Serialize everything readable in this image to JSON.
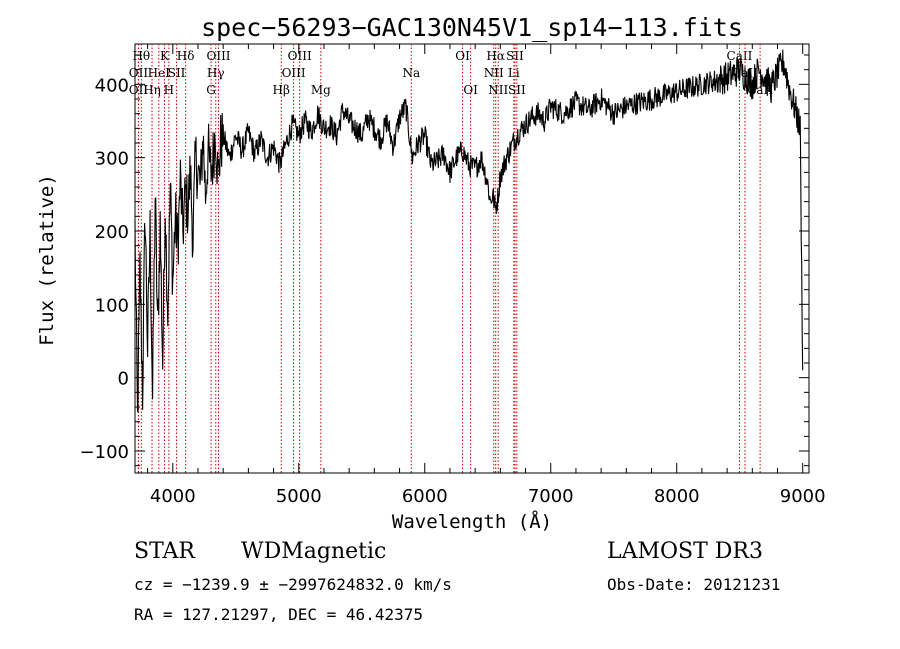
{
  "footer": {
    "objclass": "STAR",
    "subclass": "WDMagnetic",
    "survey": "LAMOST DR3",
    "cz": "cz = −1239.9 ± −2997624832.0 km/s",
    "obsdate": "Obs-Date: 20121231",
    "coords": "RA = 127.21297, DEC =  46.42375"
  },
  "chart_data": {
    "type": "line",
    "title": "spec−56293−GAC130N45V1_sp14−113.fits",
    "xlabel": "Wavelength (Å)",
    "ylabel": "Flux (relative)",
    "xlim": [
      3700,
      9050
    ],
    "ylim": [
      -130,
      455
    ],
    "xticks": [
      4000,
      5000,
      6000,
      7000,
      8000,
      9000
    ],
    "yticks": [
      -100,
      0,
      100,
      200,
      300,
      400
    ],
    "ytick_labels": [
      "−100",
      "0",
      "100",
      "200",
      "300",
      "400"
    ],
    "line_color": "#000000",
    "marker_color": "#cc0000",
    "series": [
      {
        "name": "flux",
        "x": [
          3700,
          3720,
          3740,
          3760,
          3780,
          3800,
          3820,
          3840,
          3860,
          3880,
          3900,
          3920,
          3940,
          3960,
          3980,
          4000,
          4020,
          4040,
          4060,
          4080,
          4100,
          4120,
          4140,
          4160,
          4180,
          4200,
          4220,
          4240,
          4260,
          4280,
          4300,
          4320,
          4340,
          4360,
          4380,
          4400,
          4450,
          4500,
          4550,
          4600,
          4650,
          4700,
          4750,
          4800,
          4850,
          4900,
          4950,
          5000,
          5050,
          5100,
          5150,
          5200,
          5250,
          5300,
          5350,
          5400,
          5450,
          5500,
          5550,
          5600,
          5650,
          5700,
          5750,
          5800,
          5850,
          5900,
          5950,
          6000,
          6050,
          6100,
          6150,
          6200,
          6250,
          6300,
          6350,
          6400,
          6450,
          6500,
          6520,
          6540,
          6560,
          6580,
          6600,
          6650,
          6700,
          6750,
          6800,
          6850,
          6900,
          6950,
          7000,
          7100,
          7200,
          7300,
          7400,
          7500,
          7600,
          7700,
          7800,
          7900,
          8000,
          8100,
          8200,
          8300,
          8400,
          8450,
          8500,
          8550,
          8600,
          8650,
          8700,
          8750,
          8800,
          8850,
          8900,
          8950,
          8980,
          9000
        ],
        "y": [
          200,
          -60,
          150,
          -20,
          230,
          40,
          200,
          -30,
          250,
          60,
          210,
          20,
          240,
          90,
          260,
          130,
          220,
          180,
          270,
          200,
          250,
          230,
          280,
          190,
          300,
          280,
          260,
          330,
          250,
          310,
          280,
          300,
          340,
          270,
          320,
          330,
          300,
          330,
          310,
          335,
          305,
          325,
          300,
          315,
          290,
          320,
          345,
          330,
          350,
          335,
          360,
          340,
          345,
          330,
          365,
          350,
          340,
          330,
          355,
          340,
          325,
          350,
          315,
          355,
          370,
          300,
          320,
          330,
          290,
          295,
          305,
          280,
          300,
          310,
          290,
          285,
          300,
          265,
          240,
          250,
          230,
          245,
          275,
          300,
          320,
          335,
          345,
          355,
          360,
          350,
          370,
          360,
          375,
          365,
          380,
          360,
          370,
          375,
          380,
          385,
          390,
          395,
          400,
          405,
          410,
          415,
          420,
          410,
          400,
          420,
          410,
          395,
          415,
          430,
          390,
          360,
          340,
          10
        ]
      }
    ],
    "line_markers": [
      {
        "w": 3750,
        "label": "Hθ",
        "row": 1
      },
      {
        "w": 3727,
        "label": "OII",
        "row": 2
      },
      {
        "w": 3727,
        "label": "OII",
        "row": 3
      },
      {
        "w": 3835,
        "label": "Hη",
        "row": 3
      },
      {
        "w": 3889,
        "label": "HeI",
        "row": 2
      },
      {
        "w": 3934,
        "label": "K",
        "row": 1
      },
      {
        "w": 3969,
        "label": "H",
        "row": 3
      },
      {
        "w": 4030,
        "label": "SII",
        "row": 2
      },
      {
        "w": 4102,
        "label": "Hδ",
        "row": 1
      },
      {
        "w": 4304,
        "label": "G",
        "row": 3
      },
      {
        "w": 4341,
        "label": "Hγ",
        "row": 2
      },
      {
        "w": 4363,
        "label": "OIII",
        "row": 1
      },
      {
        "w": 4861,
        "label": "Hβ",
        "row": 3
      },
      {
        "w": 4959,
        "label": "OIII",
        "row": 2
      },
      {
        "w": 5007,
        "label": "OIII",
        "row": 1
      },
      {
        "w": 5175,
        "label": "Mg",
        "row": 3
      },
      {
        "w": 5893,
        "label": "Na",
        "row": 2
      },
      {
        "w": 6300,
        "label": "OI",
        "row": 1
      },
      {
        "w": 6364,
        "label": "OI",
        "row": 3
      },
      {
        "w": 6548,
        "label": "NII",
        "row": 2
      },
      {
        "w": 6563,
        "label": "Hα",
        "row": 1
      },
      {
        "w": 6583,
        "label": "NII",
        "row": 3
      },
      {
        "w": 6707,
        "label": "Li",
        "row": 2
      },
      {
        "w": 6716,
        "label": "SII",
        "row": 1
      },
      {
        "w": 6731,
        "label": "SII",
        "row": 3
      },
      {
        "w": 8498,
        "label": "CaII",
        "row": 1
      },
      {
        "w": 8542,
        "label": "CaII",
        "row": 2
      },
      {
        "w": 8662,
        "label": "CaII",
        "row": 3
      }
    ]
  }
}
